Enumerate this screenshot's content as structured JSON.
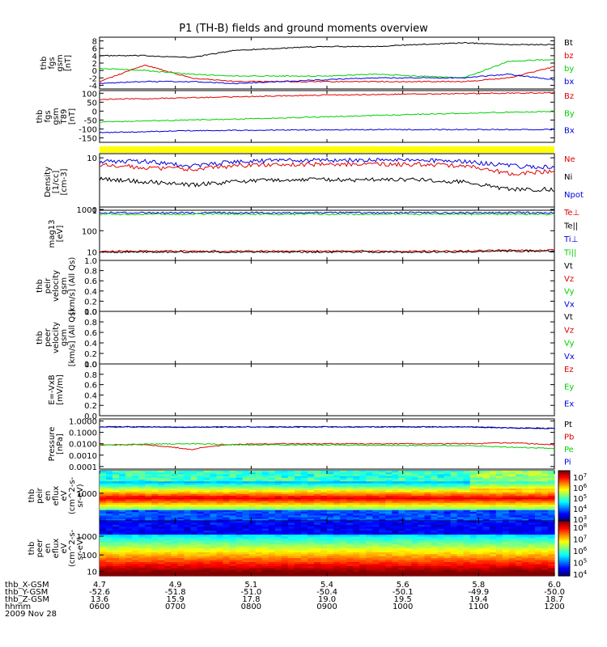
{
  "title": "P1 (TH-B) fields and ground moments overview",
  "colors": {
    "black": "#000000",
    "red": "#e00000",
    "green": "#00d000",
    "blue": "#0000e0",
    "yellow": "#ffff00"
  },
  "chart_data": [
    {
      "id": "fgs",
      "type": "line",
      "ylabel": [
        "thb",
        "fgs",
        "gsm",
        "[nT]"
      ],
      "ylim": [
        -5,
        9
      ],
      "yticks": [
        "8",
        "6",
        "4",
        "2",
        "0",
        "-2",
        "-4"
      ],
      "series": [
        {
          "name": "Bt",
          "color": "black",
          "values": [
            4.0,
            4.0,
            3.5,
            5.5,
            6.0,
            6.5,
            6.5,
            7.0,
            7.5,
            7.0,
            7.0
          ]
        },
        {
          "name": "bz",
          "color": "red",
          "values": [
            -3.0,
            1.5,
            -2.0,
            -3.0,
            -3.0,
            -3.0,
            -3.0,
            -3.0,
            -3.0,
            -2.0,
            1.0
          ]
        },
        {
          "name": "by",
          "color": "green",
          "values": [
            0.5,
            0.0,
            -1.0,
            -1.5,
            -1.5,
            -1.5,
            -1.0,
            -1.5,
            -2.0,
            2.5,
            3.0
          ]
        },
        {
          "name": "bx",
          "color": "blue",
          "values": [
            -3.5,
            -3.0,
            -3.0,
            -3.5,
            -3.0,
            -2.5,
            -2.0,
            -2.0,
            -2.0,
            -1.0,
            -2.5
          ]
        }
      ]
    },
    {
      "id": "t89",
      "type": "line",
      "ylabel": [
        "thb",
        "fgs",
        "gsm",
        "T89",
        "[nT]"
      ],
      "ylim": [
        -175,
        115
      ],
      "yticks": [
        "100",
        "50",
        "0",
        "-50",
        "-100",
        "-150"
      ],
      "series": [
        {
          "name": "Bz",
          "color": "red",
          "values": [
            65,
            70,
            75,
            80,
            85,
            90,
            93,
            96,
            98,
            100,
            103
          ]
        },
        {
          "name": "By",
          "color": "green",
          "values": [
            -60,
            -55,
            -50,
            -45,
            -38,
            -32,
            -25,
            -18,
            -12,
            -6,
            -2
          ]
        },
        {
          "name": "Bx",
          "color": "blue",
          "values": [
            -120,
            -115,
            -110,
            -108,
            -106,
            -105,
            -104,
            -104,
            -103,
            -103,
            -103
          ]
        }
      ]
    },
    {
      "id": "density",
      "type": "line",
      "scale": "log",
      "ylabel": [
        "Density",
        "[1/cc]",
        "[cm-3]"
      ],
      "ylim": [
        1,
        12
      ],
      "yticks": [
        "10",
        "1"
      ],
      "series": [
        {
          "name": "Ne",
          "color": "red",
          "values": [
            7.5,
            6.5,
            6.0,
            7.0,
            7.5,
            7.5,
            7.5,
            7.5,
            7.0,
            5.0,
            5.5
          ]
        },
        {
          "name": "Ni",
          "color": "black",
          "values": [
            4.0,
            3.5,
            3.0,
            3.5,
            3.8,
            3.8,
            3.8,
            3.8,
            3.5,
            2.5,
            2.5
          ]
        },
        {
          "name": "Npot",
          "color": "blue",
          "values": [
            8.5,
            8.5,
            7.0,
            8.5,
            9.0,
            9.0,
            9.0,
            9.0,
            8.5,
            7.0,
            6.5
          ]
        }
      ]
    },
    {
      "id": "temp",
      "type": "line",
      "scale": "log",
      "ylabel": [
        "mag13",
        "[eV]"
      ],
      "ylim": [
        4,
        1300
      ],
      "yticks": [
        "1000",
        "100",
        "10"
      ],
      "series": [
        {
          "name": "Te⊥",
          "color": "red",
          "values": [
            11,
            11,
            11,
            11,
            11,
            11,
            11,
            11,
            11,
            12,
            12
          ]
        },
        {
          "name": "Te||",
          "color": "black",
          "values": [
            10,
            10,
            10,
            10,
            10,
            10,
            10,
            10,
            10,
            11,
            11
          ]
        },
        {
          "name": "Ti⊥",
          "color": "blue",
          "values": [
            700,
            700,
            700,
            700,
            700,
            700,
            700,
            700,
            700,
            700,
            700
          ]
        },
        {
          "name": "Ti||",
          "color": "green",
          "values": [
            600,
            600,
            600,
            600,
            600,
            600,
            600,
            600,
            600,
            600,
            600
          ]
        }
      ]
    },
    {
      "id": "vpeir",
      "type": "line",
      "ylabel": [
        "thb",
        "peir",
        "velocity",
        "gsm",
        "[km/s] (All Qs)"
      ],
      "ylim": [
        0,
        1
      ],
      "yticks": [
        "1.0",
        "0.8",
        "0.6",
        "0.4",
        "0.2",
        "0.0"
      ],
      "series": [
        {
          "name": "Vt",
          "color": "black",
          "values": []
        },
        {
          "name": "Vz",
          "color": "red",
          "values": []
        },
        {
          "name": "Vy",
          "color": "green",
          "values": []
        },
        {
          "name": "Vx",
          "color": "blue",
          "values": []
        }
      ]
    },
    {
      "id": "vpeer",
      "type": "line",
      "ylabel": [
        "thb",
        "peer",
        "velocity",
        "gsm",
        "[km/s] (All Qs)"
      ],
      "ylim": [
        0,
        1
      ],
      "yticks": [
        "1.0",
        "0.8",
        "0.6",
        "0.4",
        "0.2",
        "0.0"
      ],
      "series": [
        {
          "name": "Vt",
          "color": "black",
          "values": []
        },
        {
          "name": "Vz",
          "color": "red",
          "values": []
        },
        {
          "name": "Vy",
          "color": "green",
          "values": []
        },
        {
          "name": "Vx",
          "color": "blue",
          "values": []
        }
      ]
    },
    {
      "id": "efield",
      "type": "line",
      "ylabel": [
        "E=-VxB",
        "[mV/m]"
      ],
      "ylim": [
        0,
        1
      ],
      "yticks": [
        "1.0",
        "0.8",
        "0.6",
        "0.4",
        "0.2",
        "0.0"
      ],
      "series": [
        {
          "name": "Ez",
          "color": "red",
          "values": []
        },
        {
          "name": "Ey",
          "color": "green",
          "values": []
        },
        {
          "name": "Ex",
          "color": "blue",
          "values": []
        }
      ]
    },
    {
      "id": "pressure",
      "type": "line",
      "scale": "log",
      "ylabel": [
        "Pressure",
        "[nPa]"
      ],
      "ylim": [
        6e-05,
        1.5
      ],
      "yticks": [
        "1.0000",
        "0.1000",
        "0.0100",
        "0.0010",
        "0.0001"
      ],
      "series": [
        {
          "name": "Pt",
          "color": "black",
          "values": [
            0.3,
            0.3,
            0.28,
            0.3,
            0.3,
            0.3,
            0.3,
            0.3,
            0.3,
            0.25,
            0.22
          ]
        },
        {
          "name": "Pb",
          "color": "red",
          "values": [
            0.008,
            0.008,
            0.003,
            0.009,
            0.01,
            0.01,
            0.01,
            0.01,
            0.01,
            0.012,
            0.008
          ]
        },
        {
          "name": "Pe",
          "color": "green",
          "values": [
            0.008,
            0.009,
            0.01,
            0.008,
            0.008,
            0.008,
            0.007,
            0.007,
            0.007,
            0.005,
            0.004
          ]
        },
        {
          "name": "Pi",
          "color": "blue",
          "values": [
            0.3,
            0.3,
            0.28,
            0.3,
            0.3,
            0.3,
            0.3,
            0.3,
            0.3,
            0.25,
            0.22
          ]
        }
      ]
    },
    {
      "id": "peir_spec",
      "type": "heatmap",
      "scale": "log",
      "ylabel": [
        "thb",
        "peir",
        "en",
        "eflux",
        "eV",
        "(cm^2-s-",
        "sr-eV)"
      ],
      "yticks": [
        "1000"
      ],
      "colorbar": [
        "10^7",
        "10^6",
        "10^5",
        "10^4",
        "10^3"
      ]
    },
    {
      "id": "peer_spec",
      "type": "heatmap",
      "scale": "log",
      "ylabel": [
        "thb",
        "peer",
        "en",
        "eflux",
        "eV",
        "(cm^2-s-",
        "sr-eV)"
      ],
      "yticks": [
        "1000",
        "100",
        "10"
      ],
      "colorbar": [
        "10^8",
        "10^7",
        "10^6",
        "10^5",
        "10^4"
      ]
    }
  ],
  "xaxis": {
    "rows": [
      {
        "label": "thb_X-GSM",
        "values": [
          "4.7",
          "4.9",
          "5.1",
          "5.4",
          "5.6",
          "5.8",
          "6.0"
        ]
      },
      {
        "label": "thb_Y-GSM",
        "values": [
          "-52.6",
          "-51.8",
          "-51.0",
          "-50.4",
          "-50.1",
          "-49.9",
          "-50.0"
        ]
      },
      {
        "label": "thb_Z-GSM",
        "values": [
          "13.6",
          "15.9",
          "17.8",
          "19.0",
          "19.5",
          "19.4",
          "18.7"
        ]
      },
      {
        "label": "hhmm",
        "values": [
          "0600",
          "0700",
          "0800",
          "0900",
          "1000",
          "1100",
          "1200"
        ]
      }
    ],
    "date": "2009 Nov 28"
  }
}
